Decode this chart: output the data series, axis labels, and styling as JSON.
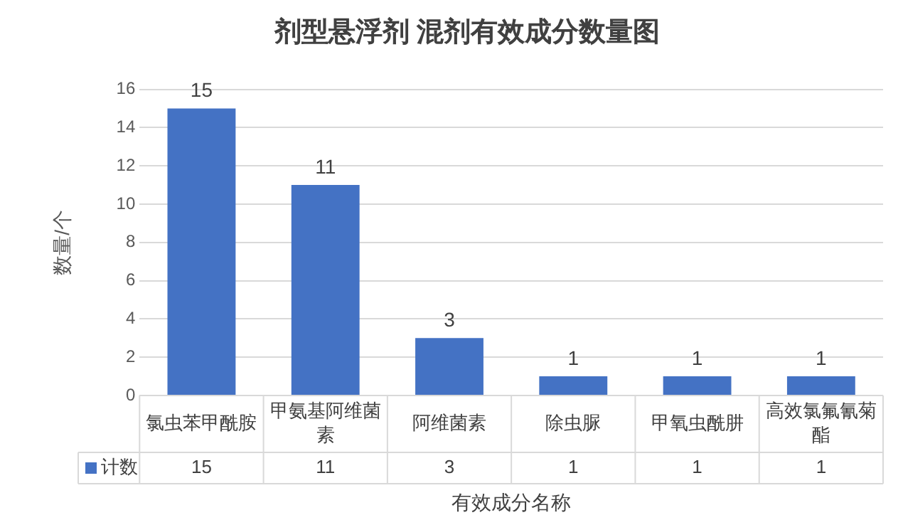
{
  "chart_data": {
    "type": "bar",
    "title": "剂型悬浮剂 混剂有效成分数量图",
    "xlabel": "有效成分名称",
    "ylabel": "数量/个",
    "categories": [
      "氯虫苯甲酰胺",
      "甲氨基阿维菌素",
      "阿维菌素",
      "除虫脲",
      "甲氧虫酰肼",
      "高效氯氟氰菊酯"
    ],
    "series": [
      {
        "name": "计数",
        "color": "#4472c4",
        "values": [
          15,
          11,
          3,
          1,
          1,
          1
        ],
        "value_labels": [
          "15",
          "11",
          "3",
          "1",
          "1",
          "1"
        ]
      }
    ],
    "annotations": [
      "15",
      "11",
      "3",
      "1",
      "1",
      "1"
    ],
    "ylim": [
      0,
      16
    ],
    "yticks": [
      0,
      2,
      4,
      6,
      8,
      10,
      12,
      14,
      16
    ],
    "grid": "y",
    "data_labels": true
  }
}
